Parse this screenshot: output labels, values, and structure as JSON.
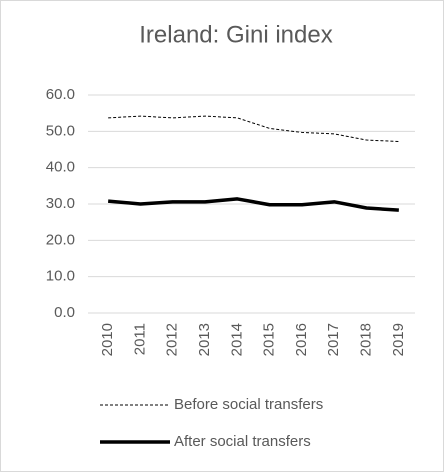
{
  "chart_data": {
    "type": "line",
    "title": "Ireland: Gini index",
    "categories": [
      "2010",
      "2011",
      "2012",
      "2013",
      "2014",
      "2015",
      "2016",
      "2017",
      "2018",
      "2019"
    ],
    "series": [
      {
        "name": "Before social transfers",
        "color": "#000000",
        "line_style": "dashed",
        "line_width": 1,
        "values": [
          53.7,
          54.2,
          53.7,
          54.2,
          53.7,
          50.8,
          49.7,
          49.3,
          47.6,
          47.2
        ]
      },
      {
        "name": "After social transfers",
        "color": "#000000",
        "line_style": "solid",
        "line_width": 3.5,
        "values": [
          30.8,
          30.0,
          30.6,
          30.6,
          31.4,
          29.8,
          29.8,
          30.6,
          28.9,
          28.3
        ]
      }
    ],
    "ylim": [
      0,
      60
    ],
    "yticks": [
      {
        "value": 0,
        "label": "0.0"
      },
      {
        "value": 10,
        "label": "10.0"
      },
      {
        "value": 20,
        "label": "20.0"
      },
      {
        "value": 30,
        "label": "30.0"
      },
      {
        "value": 40,
        "label": "40.0"
      },
      {
        "value": 50,
        "label": "50.0"
      },
      {
        "value": 60,
        "label": "60.0"
      }
    ],
    "grid": true,
    "legend": "bottom"
  }
}
